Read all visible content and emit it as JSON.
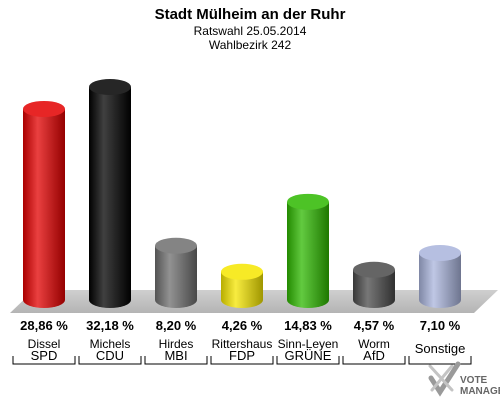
{
  "chart_data": {
    "type": "bar",
    "title": "Stadt Mülheim an der Ruhr",
    "subtitle_1": "Ratswahl 25.05.2014",
    "subtitle_2": "Wahlbezirk 242",
    "ylim": [
      0,
      35
    ],
    "grid": false,
    "legend": "none",
    "categories": [
      "SPD",
      "CDU",
      "MBI",
      "FDP",
      "GRÜNE",
      "AfD",
      "Sonstige"
    ],
    "candidates": [
      "Dissel",
      "Michels",
      "Hirdes",
      "Rittershaus",
      "Sinn-Leyen",
      "Worm",
      ""
    ],
    "values": [
      28.86,
      32.18,
      8.2,
      4.26,
      14.83,
      4.57,
      7.1
    ],
    "value_labels": [
      "28,86 %",
      "32,18 %",
      "8,20 %",
      "4,26 %",
      "14,83 %",
      "4,57 %",
      "7,10 %"
    ],
    "colors": [
      "#e30000",
      "#000000",
      "#6e6e6e",
      "#f5e600",
      "#2eb800",
      "#4a4a4a",
      "#a9b4dc"
    ]
  },
  "logo": {
    "line1": "VOTE",
    "line2": "MANAGER",
    "icon": "checkmark-cross-logo-icon"
  }
}
